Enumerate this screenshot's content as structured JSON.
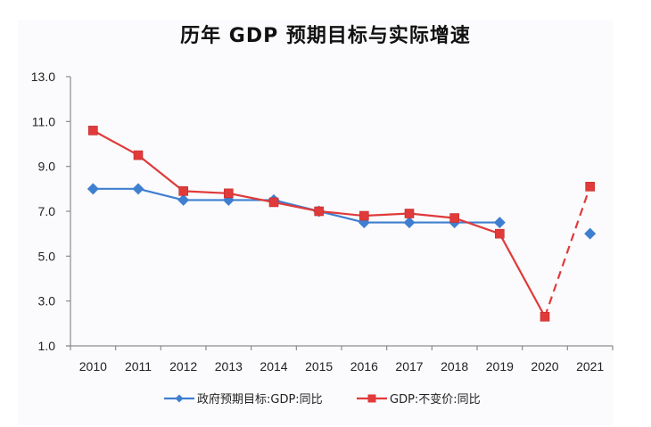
{
  "chart_data": {
    "type": "line",
    "title": "历年 GDP 预期目标与实际增速",
    "xlabel": "",
    "ylabel": "",
    "categories": [
      "2010",
      "2011",
      "2012",
      "2013",
      "2014",
      "2015",
      "2016",
      "2017",
      "2018",
      "2019",
      "2020",
      "2021"
    ],
    "ylim": [
      1.0,
      13.0
    ],
    "yticks": [
      "1.0",
      "3.0",
      "5.0",
      "7.0",
      "9.0",
      "11.0",
      "13.0"
    ],
    "grid": false,
    "legend_position": "bottom",
    "series": [
      {
        "name": "政府预期目标:GDP:同比",
        "color": "#3f7fd0",
        "marker": "diamond",
        "values": [
          8.0,
          8.0,
          7.5,
          7.5,
          7.5,
          7.0,
          6.5,
          6.5,
          6.5,
          6.5,
          null,
          6.0
        ],
        "dashed_segments": []
      },
      {
        "name": "GDP:不变价:同比",
        "color": "#e03a3a",
        "marker": "square",
        "values": [
          10.6,
          9.5,
          7.9,
          7.8,
          7.4,
          7.0,
          6.8,
          6.9,
          6.7,
          6.0,
          2.3,
          8.1
        ],
        "dashed_segments": [
          [
            10,
            11
          ]
        ]
      }
    ]
  }
}
